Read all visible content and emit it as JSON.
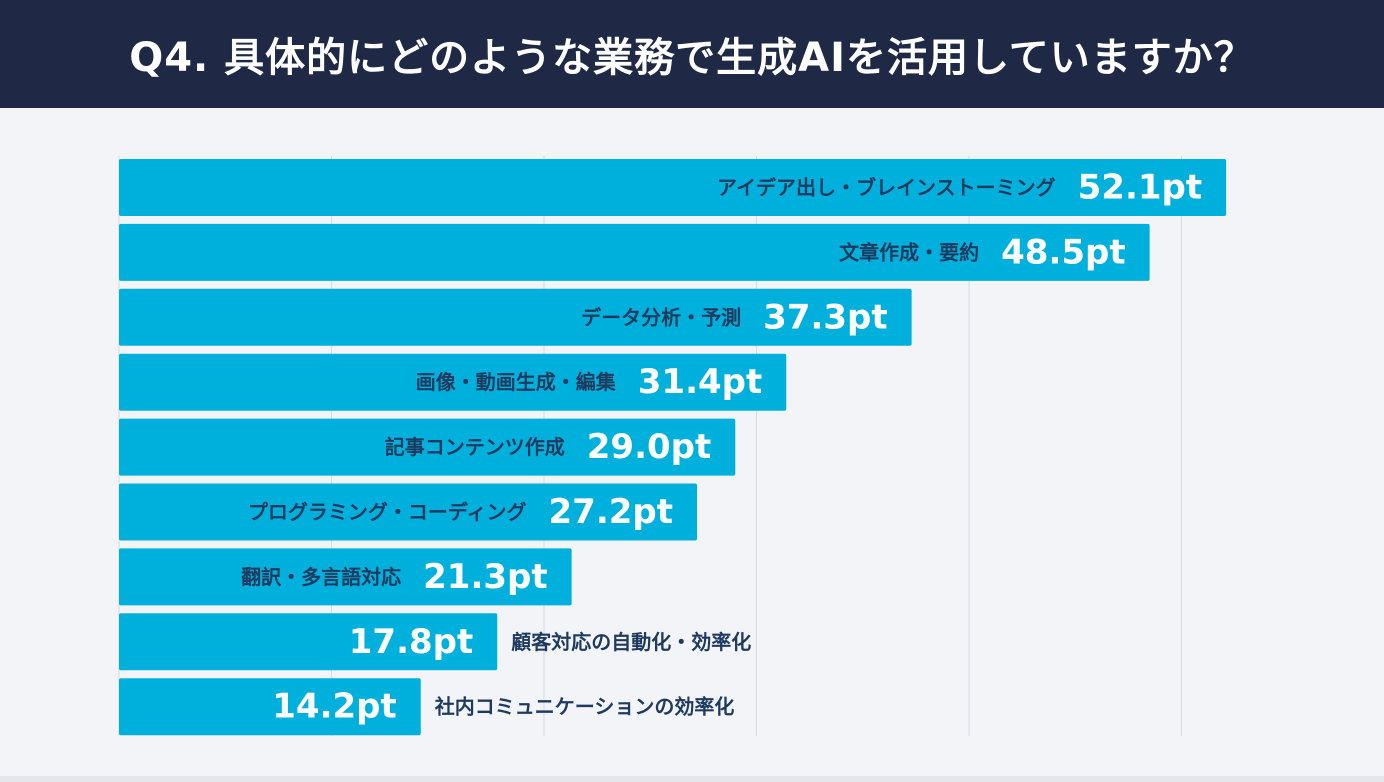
{
  "header": {
    "title": "Q4. 具体的にどのような業務で生成AIを活用していますか？"
  },
  "colors": {
    "bar": "#00b0dc",
    "label_inside": "#1f3a5f",
    "label_outside": "#1f3a5f",
    "value_text": "#ffffff",
    "grid": "#d6dae3",
    "header_bg": "#1f2844"
  },
  "chart_data": {
    "type": "bar",
    "orientation": "horizontal",
    "title": "Q4. 具体的にどのような業務で生成AIを活用していますか？",
    "xlabel": "",
    "ylabel": "",
    "xlim": [
      0,
      50
    ],
    "grid": true,
    "categories": [
      "アイデア出し・ブレインストーミング",
      "文章作成・要約",
      "データ分析・予測",
      "画像・動画生成・編集",
      "記事コンテンツ作成",
      "プログラミング・コーディング",
      "翻訳・多言語対応",
      "顧客対応の自動化・効率化",
      "社内コミュニケーションの効率化"
    ],
    "values": [
      52.1,
      48.5,
      37.3,
      31.4,
      29.0,
      27.2,
      21.3,
      17.8,
      14.2
    ],
    "value_labels": [
      "52.1pt",
      "48.5pt",
      "37.3pt",
      "31.4pt",
      "29.0pt",
      "27.2pt",
      "21.3pt",
      "17.8pt",
      "14.2pt"
    ]
  }
}
